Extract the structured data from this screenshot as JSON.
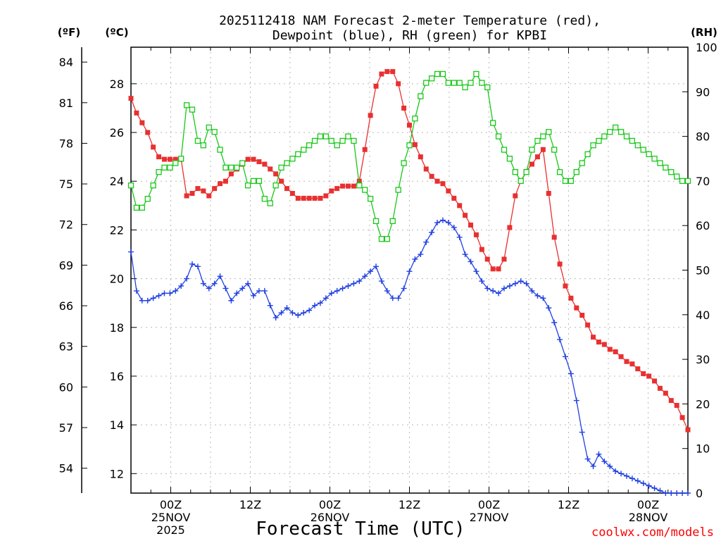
{
  "chart_data": {
    "type": "line",
    "title_lines": [
      "2025112418 NAM Forecast 2-meter Temperature (red),",
      "Dewpoint (blue), RH (green) for KPBI"
    ],
    "xlabel": "Forecast Time (UTC)",
    "credit": "coolwx.com/models",
    "left_unit_f": "(ºF)",
    "left_unit_c": "(ºC)",
    "right_unit": "(RH)",
    "ylim_c": [
      11.2,
      29.5
    ],
    "ylim_rh": [
      0,
      100
    ],
    "yticks_c": [
      12,
      14,
      16,
      18,
      20,
      22,
      24,
      26,
      28
    ],
    "yticks_f": [
      54,
      57,
      60,
      63,
      66,
      69,
      72,
      75,
      78,
      81,
      84
    ],
    "yticks_rh": [
      0,
      10,
      20,
      30,
      40,
      50,
      60,
      70,
      80,
      90,
      100
    ],
    "x_range_hours": [
      18,
      102
    ],
    "x_ticks": [
      {
        "hour": 24,
        "lines": [
          "00Z",
          "25NOV",
          "2025"
        ]
      },
      {
        "hour": 36,
        "lines": [
          "12Z"
        ]
      },
      {
        "hour": 48,
        "lines": [
          "00Z",
          "26NOV"
        ]
      },
      {
        "hour": 60,
        "lines": [
          "12Z"
        ]
      },
      {
        "hour": 72,
        "lines": [
          "00Z",
          "27NOV"
        ]
      },
      {
        "hour": 84,
        "lines": [
          "12Z"
        ]
      },
      {
        "hour": 96,
        "lines": [
          "00Z",
          "28NOV"
        ]
      }
    ],
    "series": [
      {
        "name": "Temperature",
        "axis": "c",
        "color": "#e83030",
        "marker": "filled-square",
        "values": [
          27.4,
          26.8,
          26.4,
          26.0,
          25.4,
          25.0,
          24.9,
          24.9,
          24.9,
          24.9,
          23.4,
          23.5,
          23.7,
          23.6,
          23.4,
          23.7,
          23.9,
          24.0,
          24.3,
          24.5,
          24.7,
          24.9,
          24.9,
          24.8,
          24.7,
          24.5,
          24.3,
          24.0,
          23.7,
          23.5,
          23.3,
          23.3,
          23.3,
          23.3,
          23.3,
          23.4,
          23.6,
          23.7,
          23.8,
          23.8,
          23.8,
          24.0,
          25.3,
          26.7,
          27.9,
          28.4,
          28.5,
          28.5,
          28.0,
          27.0,
          26.3,
          25.5,
          25.0,
          24.5,
          24.2,
          24.0,
          23.9,
          23.6,
          23.3,
          23.0,
          22.6,
          22.2,
          21.8,
          21.2,
          20.8,
          20.4,
          20.4,
          20.8,
          22.1,
          23.4,
          24.0,
          24.4,
          24.7,
          25.0,
          25.3,
          23.5,
          21.7,
          20.6,
          19.7,
          19.2,
          18.8,
          18.5,
          18.1,
          17.6,
          17.4,
          17.3,
          17.1,
          17.0,
          16.8,
          16.6,
          16.5,
          16.3,
          16.1,
          16.0,
          15.8,
          15.5,
          15.3,
          15.0,
          14.8,
          14.3,
          13.8
        ]
      },
      {
        "name": "Dewpoint",
        "axis": "c",
        "color": "#2040e0",
        "marker": "plus",
        "values": [
          21.1,
          19.5,
          19.1,
          19.1,
          19.2,
          19.3,
          19.4,
          19.4,
          19.5,
          19.7,
          20.0,
          20.6,
          20.5,
          19.8,
          19.6,
          19.8,
          20.1,
          19.6,
          19.1,
          19.4,
          19.6,
          19.8,
          19.3,
          19.5,
          19.5,
          18.9,
          18.4,
          18.6,
          18.8,
          18.6,
          18.5,
          18.6,
          18.7,
          18.9,
          19.0,
          19.2,
          19.4,
          19.5,
          19.6,
          19.7,
          19.8,
          19.9,
          20.1,
          20.3,
          20.5,
          19.9,
          19.5,
          19.2,
          19.2,
          19.6,
          20.3,
          20.8,
          21.0,
          21.5,
          21.9,
          22.3,
          22.4,
          22.3,
          22.1,
          21.7,
          21.0,
          20.7,
          20.3,
          19.9,
          19.6,
          19.5,
          19.4,
          19.6,
          19.7,
          19.8,
          19.9,
          19.8,
          19.5,
          19.3,
          19.2,
          18.8,
          18.2,
          17.5,
          16.8,
          16.1,
          15.0,
          13.7,
          12.6,
          12.3,
          12.8,
          12.5,
          12.3,
          12.1,
          12.0,
          11.9,
          11.8,
          11.7,
          11.6,
          11.5,
          11.4,
          11.3,
          11.2,
          11.2,
          11.2,
          11.2,
          11.2
        ]
      },
      {
        "name": "RH",
        "axis": "rh",
        "color": "#18c818",
        "marker": "hollow-square",
        "values": [
          69,
          64,
          64,
          66,
          69,
          72,
          73,
          73,
          74,
          75,
          87,
          86,
          79,
          78,
          82,
          81,
          77,
          73,
          73,
          73,
          74,
          69,
          70,
          70,
          66,
          65,
          69,
          73,
          74,
          75,
          76,
          77,
          78,
          79,
          80,
          80,
          79,
          78,
          79,
          80,
          79,
          69,
          68,
          66,
          61,
          57,
          57,
          61,
          68,
          74,
          78,
          84,
          89,
          92,
          93,
          94,
          94,
          92,
          92,
          92,
          91,
          92,
          94,
          92,
          91,
          83,
          80,
          77,
          75,
          72,
          70,
          72,
          77,
          79,
          80,
          81,
          77,
          72,
          70,
          70,
          72,
          74,
          76,
          78,
          79,
          80,
          81,
          82,
          81,
          80,
          79,
          78,
          77,
          76,
          75,
          74,
          73,
          72,
          71,
          70,
          70
        ]
      }
    ]
  }
}
